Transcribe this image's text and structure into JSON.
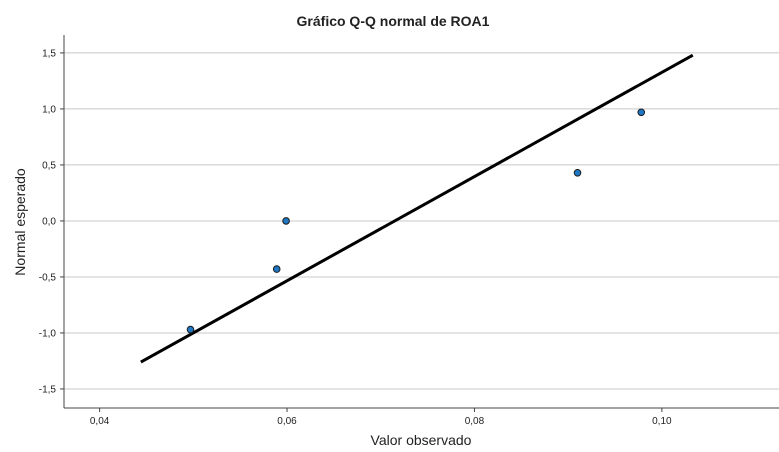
{
  "chart_data": {
    "type": "scatter",
    "title": "Gráfico Q-Q normal de ROA1",
    "xlabel": "Valor observado",
    "ylabel": "Normal esperado",
    "xlim": [
      0.0362,
      0.1125
    ],
    "ylim": [
      -1.67,
      1.66
    ],
    "x_ticks": [
      0.04,
      0.06,
      0.08,
      0.1
    ],
    "x_tick_labels": [
      "0,04",
      "0,06",
      "0,08",
      "0,10"
    ],
    "y_ticks": [
      1.5,
      1.0,
      0.5,
      0.0,
      -0.5,
      -1.0,
      -1.5
    ],
    "y_tick_labels": [
      "1,5",
      "1,0",
      "0,5",
      "0,0",
      "-0,5",
      "-1,0",
      "-1,5"
    ],
    "grid": "horizontal",
    "points": [
      {
        "x": 0.0497,
        "y": -0.97
      },
      {
        "x": 0.0589,
        "y": -0.43
      },
      {
        "x": 0.0599,
        "y": 0.0
      },
      {
        "x": 0.091,
        "y": 0.43
      },
      {
        "x": 0.0978,
        "y": 0.97
      }
    ],
    "reference_line": {
      "x": [
        0.0444,
        0.1033
      ],
      "y": [
        -1.26,
        1.48
      ]
    },
    "point_color": "#1f77c4",
    "line_color": "#000000"
  }
}
